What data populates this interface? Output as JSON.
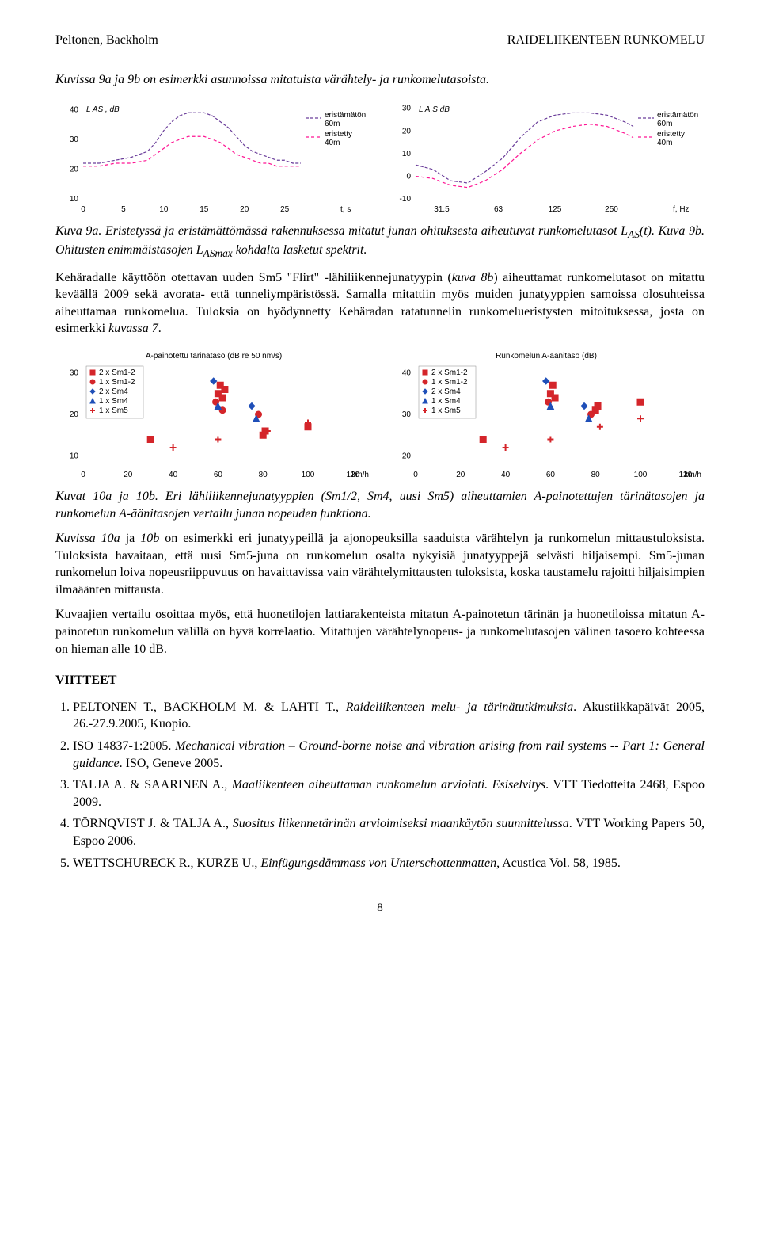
{
  "header": {
    "left": "Peltonen, Backholm",
    "right": "RAIDELIIKENTEEN RUNKOMELU"
  },
  "intro": "Kuvissa 9a ja 9b on esimerkki asunnoissa mitatuista värähtely- ja runkomelutasoista.",
  "chart9a": {
    "type": "line",
    "ylabel": "L AS , dB",
    "xlabel": "t, s",
    "xlim": [
      0,
      27
    ],
    "ylim": [
      10,
      42
    ],
    "xticks": [
      0,
      5,
      10,
      15,
      20,
      25
    ],
    "yticks": [
      10,
      20,
      30,
      40
    ],
    "series": [
      {
        "label": "eristämätön 60m",
        "color": "#6a3d9a",
        "dash": "4,2",
        "width": 1.2,
        "x": [
          0,
          2,
          4,
          6,
          8,
          9,
          10,
          11,
          12,
          13,
          14,
          15,
          16,
          17,
          18,
          19,
          20,
          21,
          22,
          23,
          24,
          25,
          26,
          27
        ],
        "y": [
          22,
          22,
          23,
          24,
          26,
          29,
          33,
          36,
          38,
          39,
          39,
          39,
          38,
          36,
          34,
          31,
          28,
          26,
          25,
          24,
          23,
          23,
          22,
          22
        ]
      },
      {
        "label": "eristetty 40m",
        "color": "#ff1493",
        "dash": "4,3",
        "width": 1.2,
        "x": [
          0,
          2,
          4,
          6,
          8,
          9,
          10,
          11,
          12,
          13,
          14,
          15,
          16,
          17,
          18,
          19,
          20,
          21,
          22,
          23,
          24,
          25,
          26,
          27
        ],
        "y": [
          21,
          21,
          22,
          22,
          23,
          25,
          27,
          29,
          30,
          31,
          31,
          31,
          30,
          29,
          27,
          25,
          24,
          23,
          22,
          22,
          21,
          21,
          21,
          21
        ]
      }
    ],
    "legend_colors": {
      "eristämätön": "#6a3d9a",
      "eristetty": "#ff1493"
    },
    "legend_labels": [
      "eristämätön 60m",
      "eristetty 40m"
    ]
  },
  "chart9b": {
    "type": "line",
    "ylabel": "L A,S dB",
    "xlabel": "f, Hz",
    "xticks_labels": [
      "31.5",
      "63",
      "125",
      "250"
    ],
    "xticks_pos": [
      0.12,
      0.38,
      0.64,
      0.9
    ],
    "ylim": [
      -10,
      32
    ],
    "yticks": [
      -10,
      0,
      10,
      20,
      30
    ],
    "series": [
      {
        "label": "eristämätön 60m",
        "color": "#6a3d9a",
        "dash": "4,2",
        "width": 1.2,
        "x": [
          0,
          0.08,
          0.16,
          0.24,
          0.32,
          0.4,
          0.48,
          0.56,
          0.64,
          0.72,
          0.8,
          0.88,
          0.96,
          1.0
        ],
        "y": [
          5,
          3,
          -2,
          -3,
          2,
          8,
          17,
          24,
          27,
          28,
          28,
          27,
          24,
          22
        ]
      },
      {
        "label": "eristetty 40m",
        "color": "#ff1493",
        "dash": "4,3",
        "width": 1.2,
        "x": [
          0,
          0.08,
          0.16,
          0.24,
          0.32,
          0.4,
          0.48,
          0.56,
          0.64,
          0.72,
          0.8,
          0.88,
          0.96,
          1.0
        ],
        "y": [
          0,
          -1,
          -4,
          -5,
          -2,
          3,
          10,
          16,
          20,
          22,
          23,
          22,
          19,
          17
        ]
      }
    ],
    "legend_labels": [
      "eristämätön 60m",
      "eristetty 40m"
    ]
  },
  "caption9": "Kuva 9a. Eristetyssä ja eristämättömässä rakennuksessa mitatut junan ohituksesta aiheutuvat runkomelutasot L AS(t). Kuva 9b. Ohitusten enimmäistasojen L ASmax kohdalta lasketut spektrit.",
  "para2": "Kehäradalle käyttöön otettavan uuden Sm5 \"Flirt\" -lähiliikennejunatyypin (kuva 8b) aiheuttamat runkomelutasot on mitattu keväällä 2009 sekä avorata- että tunneliympäristössä. Samalla mitattiin myös muiden junatyyppien samoissa olosuhteissa aiheuttamaa runkomelua. Tuloksia on hyödynnetty Kehäradan ratatunnelin runkomelueristysten mitoituksessa, josta on esimerkki kuvassa 7.",
  "chart10a": {
    "type": "scatter",
    "title": "A-painotettu tärinätaso (dB re 50 nm/s)",
    "xlabel": "km/h",
    "xlim": [
      0,
      125
    ],
    "ylim": [
      8,
      32
    ],
    "xticks": [
      0,
      20,
      40,
      60,
      80,
      100,
      120
    ],
    "yticks": [
      10,
      20,
      30
    ],
    "legend_items": [
      {
        "label": "2 x Sm1-2",
        "marker": "square",
        "color": "#d4252a"
      },
      {
        "label": "1 x Sm1-2",
        "marker": "circle",
        "color": "#d4252a"
      },
      {
        "label": "2 x Sm4",
        "marker": "diamond",
        "color": "#1f4fb8"
      },
      {
        "label": "1 x Sm4",
        "marker": "triangle",
        "color": "#1f4fb8"
      },
      {
        "label": "1 x Sm5",
        "marker": "plus",
        "color": "#d4252a"
      }
    ],
    "points": [
      {
        "m": "square",
        "c": "#d4252a",
        "x": 30,
        "y": 14
      },
      {
        "m": "square",
        "c": "#d4252a",
        "x": 60,
        "y": 25
      },
      {
        "m": "square",
        "c": "#d4252a",
        "x": 61,
        "y": 27
      },
      {
        "m": "square",
        "c": "#d4252a",
        "x": 62,
        "y": 24
      },
      {
        "m": "square",
        "c": "#d4252a",
        "x": 63,
        "y": 26
      },
      {
        "m": "square",
        "c": "#d4252a",
        "x": 80,
        "y": 15
      },
      {
        "m": "square",
        "c": "#d4252a",
        "x": 81,
        "y": 16
      },
      {
        "m": "square",
        "c": "#d4252a",
        "x": 100,
        "y": 17
      },
      {
        "m": "circle",
        "c": "#d4252a",
        "x": 59,
        "y": 23
      },
      {
        "m": "circle",
        "c": "#d4252a",
        "x": 62,
        "y": 21
      },
      {
        "m": "circle",
        "c": "#d4252a",
        "x": 78,
        "y": 20
      },
      {
        "m": "diamond",
        "c": "#1f4fb8",
        "x": 58,
        "y": 28
      },
      {
        "m": "diamond",
        "c": "#1f4fb8",
        "x": 75,
        "y": 22
      },
      {
        "m": "triangle",
        "c": "#1f4fb8",
        "x": 60,
        "y": 22
      },
      {
        "m": "triangle",
        "c": "#1f4fb8",
        "x": 77,
        "y": 19
      },
      {
        "m": "plus",
        "c": "#d4252a",
        "x": 40,
        "y": 12
      },
      {
        "m": "plus",
        "c": "#d4252a",
        "x": 60,
        "y": 14
      },
      {
        "m": "plus",
        "c": "#d4252a",
        "x": 82,
        "y": 16
      },
      {
        "m": "plus",
        "c": "#d4252a",
        "x": 100,
        "y": 18
      }
    ]
  },
  "chart10b": {
    "type": "scatter",
    "title": "Runkomelun A-äänitaso (dB)",
    "xlabel": "km/h",
    "xlim": [
      0,
      125
    ],
    "ylim": [
      18,
      42
    ],
    "xticks": [
      0,
      20,
      40,
      60,
      80,
      100,
      120
    ],
    "yticks": [
      20,
      30,
      40
    ],
    "legend_items": [
      {
        "label": "2 x Sm1-2",
        "marker": "square",
        "color": "#d4252a"
      },
      {
        "label": "1 x Sm1-2",
        "marker": "circle",
        "color": "#d4252a"
      },
      {
        "label": "2 x Sm4",
        "marker": "diamond",
        "color": "#1f4fb8"
      },
      {
        "label": "1 x Sm4",
        "marker": "triangle",
        "color": "#1f4fb8"
      },
      {
        "label": "1 x Sm5",
        "marker": "plus",
        "color": "#d4252a"
      }
    ],
    "points": [
      {
        "m": "square",
        "c": "#d4252a",
        "x": 30,
        "y": 24
      },
      {
        "m": "square",
        "c": "#d4252a",
        "x": 60,
        "y": 35
      },
      {
        "m": "square",
        "c": "#d4252a",
        "x": 61,
        "y": 37
      },
      {
        "m": "square",
        "c": "#d4252a",
        "x": 62,
        "y": 34
      },
      {
        "m": "square",
        "c": "#d4252a",
        "x": 80,
        "y": 31
      },
      {
        "m": "square",
        "c": "#d4252a",
        "x": 81,
        "y": 32
      },
      {
        "m": "square",
        "c": "#d4252a",
        "x": 100,
        "y": 33
      },
      {
        "m": "circle",
        "c": "#d4252a",
        "x": 59,
        "y": 33
      },
      {
        "m": "circle",
        "c": "#d4252a",
        "x": 78,
        "y": 30
      },
      {
        "m": "diamond",
        "c": "#1f4fb8",
        "x": 58,
        "y": 38
      },
      {
        "m": "diamond",
        "c": "#1f4fb8",
        "x": 75,
        "y": 32
      },
      {
        "m": "triangle",
        "c": "#1f4fb8",
        "x": 60,
        "y": 32
      },
      {
        "m": "triangle",
        "c": "#1f4fb8",
        "x": 77,
        "y": 29
      },
      {
        "m": "plus",
        "c": "#d4252a",
        "x": 40,
        "y": 22
      },
      {
        "m": "plus",
        "c": "#d4252a",
        "x": 60,
        "y": 24
      },
      {
        "m": "plus",
        "c": "#d4252a",
        "x": 82,
        "y": 27
      },
      {
        "m": "plus",
        "c": "#d4252a",
        "x": 100,
        "y": 29
      }
    ]
  },
  "caption10": "Kuvat 10a ja 10b. Eri lähiliikennejunatyyppien (Sm1/2, Sm4, uusi Sm5) aiheuttamien A-painotettujen tärinätasojen ja runkomelun A-äänitasojen vertailu junan nopeuden funktiona.",
  "para3": "Kuvissa 10a ja 10b on esimerkki eri junatyypeillä ja ajonopeuksilla saaduista värähtelyn ja runkomelun mittaustuloksista. Tuloksista havaitaan, että uusi Sm5-juna on runkomelun osalta nykyisiä junatyyppejä selvästi hiljaisempi. Sm5-junan runkomelun loiva nopeusriippuvuus on havaittavissa vain värähtelymittausten tuloksista, koska taustamelu rajoitti hiljaisimpien ilmaäänten mittausta.",
  "para4": "Kuvaajien vertailu osoittaa myös, että huonetilojen lattiarakenteista mitatun A-painotetun tärinän ja huonetiloissa mitatun A-painotetun runkomelun välillä on hyvä korrelaatio. Mitattujen värähtelynopeus- ja runkomelutasojen välinen tasoero kohteessa on hieman alle 10 dB.",
  "refs_head": "VIITTEET",
  "refs": [
    "PELTONEN T., BACKHOLM M. & LAHTI T., Raideliikenteen melu- ja tärinätutkimuksia. Akustiikkapäivät 2005, 26.-27.9.2005, Kuopio.",
    "ISO 14837-1:2005. Mechanical vibration – Ground-borne noise and vibration arising from rail systems -- Part 1: General guidance. ISO, Geneve 2005.",
    "TALJA A. & SAARINEN A., Maaliikenteen aiheuttaman runkomelun arviointi. Esiselvitys. VTT Tiedotteita 2468, Espoo 2009.",
    "TÖRNQVIST J. & TALJA  A., Suositus liikennetärinän arvioimiseksi maankäytön suunnittelussa. VTT Working Papers 50, Espoo 2006.",
    "WETTSCHURECK R., KURZE U., Einfügungsdämmass von Unterschottenmatten, Acustica Vol. 58, 1985."
  ],
  "refs_italic_spans": [
    [
      37,
      82
    ],
    [
      19,
      114
    ],
    [
      25,
      69
    ],
    [
      70,
      82
    ],
    [
      24,
      90
    ],
    [
      29,
      78
    ]
  ],
  "pagenum": "8"
}
